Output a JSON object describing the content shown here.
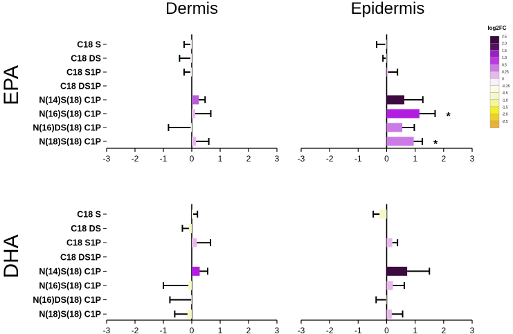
{
  "col_titles": [
    "Dermis",
    "Epidermis"
  ],
  "row_titles": [
    "EPA",
    "DHA"
  ],
  "legend": {
    "title": "log2FC",
    "ticks": [
      "2.5",
      "2.0",
      "1.5",
      "1.0",
      "0.5",
      "0.25",
      "0",
      "-0.25",
      "-0.5",
      "-1.0",
      "-1.5",
      "-2.0",
      "-2.5"
    ],
    "colors": [
      "#3c0a3e",
      "#55105e",
      "#9c1fc4",
      "#b83ae0",
      "#cc7ae6",
      "#e6b8ec",
      "#fbeff8",
      "#fbfbe6",
      "#f7f7c8",
      "#f5f59a",
      "#f3ef2a",
      "#f1d026",
      "#e8b23a"
    ]
  },
  "chart_data": [
    {
      "type": "bar",
      "orientation": "horizontal",
      "row": "EPA",
      "column": "Dermis",
      "categories": [
        "C18 S",
        "C18 DS",
        "C18 S1P",
        "C18 DS1P",
        "N(14)S(18) C1P",
        "N(16)S(18) C1P",
        "N(16)DS(18) C1P",
        "N(18)S(18) C1P"
      ],
      "values": [
        -0.05,
        -0.05,
        -0.05,
        0,
        0.25,
        0.12,
        -0.04,
        0.15
      ],
      "errors": [
        0.22,
        0.38,
        0.22,
        0,
        0.22,
        0.55,
        0.78,
        0.45
      ],
      "colors": [
        "#fbeff8",
        "#fbeff8",
        "#fbeff8",
        "#fbeff8",
        "#b65ed8",
        "#e6b8ec",
        "#fbeff8",
        "#e6b8ec"
      ],
      "significance": [
        "",
        "",
        "",
        "",
        "",
        "",
        "",
        ""
      ],
      "xlim": [
        -3,
        3
      ],
      "xticks": [
        "-3",
        "-2",
        "-1",
        "0",
        "1",
        "2",
        "3"
      ]
    },
    {
      "type": "bar",
      "orientation": "horizontal",
      "row": "EPA",
      "column": "Epidermis",
      "categories": [
        "C18 S",
        "C18 DS",
        "C18 S1P",
        "C18 DS1P",
        "N(14)S(18) C1P",
        "N(16)S(18) C1P",
        "N(16)DS(18) C1P",
        "N(18)S(18) C1P"
      ],
      "values": [
        -0.05,
        -0.03,
        0.05,
        0,
        0.62,
        1.15,
        0.55,
        0.95
      ],
      "errors": [
        0.3,
        0.1,
        0.33,
        0,
        0.65,
        0.55,
        0.42,
        0.3
      ],
      "colors": [
        "#fbeff8",
        "#fbeff8",
        "#e6b8ec",
        "#fbeff8",
        "#3c0a3e",
        "#b21ee0",
        "#cc7ae6",
        "#cc7ae6"
      ],
      "significance": [
        "",
        "",
        "",
        "",
        "",
        "*",
        "",
        "*"
      ],
      "xlim": [
        -3,
        3
      ],
      "xticks": [
        "-3",
        "-2",
        "-1",
        "0",
        "1",
        "2",
        "3"
      ]
    },
    {
      "type": "bar",
      "orientation": "horizontal",
      "row": "DHA",
      "column": "Dermis",
      "categories": [
        "C18 S",
        "C18 DS",
        "C18 S1P",
        "C18 DS1P",
        "N(14)S(18) C1P",
        "N(16)S(18) C1P",
        "N(16)DS(18) C1P",
        "N(18)S(18) C1P"
      ],
      "values": [
        0.05,
        -0.1,
        0.18,
        0,
        0.28,
        -0.12,
        -0.02,
        -0.15
      ],
      "errors": [
        0.15,
        0.23,
        0.48,
        0,
        0.28,
        0.88,
        0.75,
        0.45
      ],
      "colors": [
        "#f7f7c8",
        "#f7f7c8",
        "#e6b8ec",
        "#fbeff8",
        "#b21ee0",
        "#f7f7c8",
        "#fbfbe6",
        "#f7f7c8"
      ],
      "significance": [
        "",
        "",
        "",
        "",
        "",
        "",
        "",
        ""
      ],
      "xlim": [
        -3,
        3
      ],
      "xticks": [
        "-3",
        "-2",
        "-1",
        "0",
        "1",
        "2",
        "3"
      ]
    },
    {
      "type": "bar",
      "orientation": "horizontal",
      "row": "DHA",
      "column": "Epidermis",
      "categories": [
        "C18 S",
        "C18 DS",
        "C18 S1P",
        "C18 DS1P",
        "N(14)S(18) C1P",
        "N(16)S(18) C1P",
        "N(16)DS(18) C1P",
        "N(18)S(18) C1P"
      ],
      "values": [
        -0.25,
        0,
        0.2,
        0,
        0.72,
        0.22,
        -0.02,
        0.18
      ],
      "errors": [
        0.22,
        0,
        0.18,
        0,
        0.78,
        0.4,
        0.35,
        0.38
      ],
      "colors": [
        "#f7f7c8",
        "#fbeff8",
        "#e6b8ec",
        "#fbeff8",
        "#3c0a3e",
        "#e6b8ec",
        "#fbfbe6",
        "#e6b8ec"
      ],
      "significance": [
        "",
        "",
        "",
        "",
        "",
        "",
        "",
        ""
      ],
      "xlim": [
        -3,
        3
      ],
      "xticks": [
        "-3",
        "-2",
        "-1",
        "0",
        "1",
        "2",
        "3"
      ]
    }
  ]
}
